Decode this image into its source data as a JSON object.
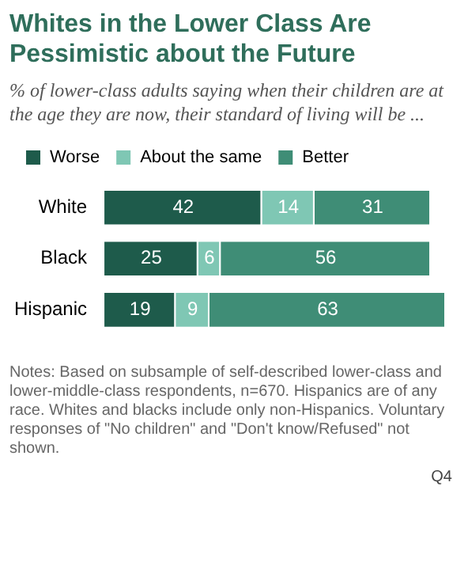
{
  "chart_data": {
    "type": "bar",
    "orientation": "horizontal",
    "stacked": true,
    "title": "Whites in the Lower Class Are Pessimistic about the Future",
    "subtitle": "% of lower-class adults saying when their children are at the age they are now, their standard of living will be ...",
    "categories": [
      "White",
      "Black",
      "Hispanic"
    ],
    "series": [
      {
        "name": "Worse",
        "color": "#1e5b4b",
        "values": [
          42,
          25,
          19
        ]
      },
      {
        "name": "About the same",
        "color": "#7fc7b4",
        "values": [
          14,
          6,
          9
        ]
      },
      {
        "name": "Better",
        "color": "#3f8d76",
        "values": [
          31,
          56,
          63
        ]
      }
    ],
    "xlim": [
      0,
      91
    ],
    "tick_labels": "y",
    "legend": "top left",
    "data_labels": true,
    "annotations": [
      "Notes: Based on subsample of self-described lower-class and lower-middle-class respondents, n=670. Hispanics are of any race. Whites and blacks include only non-Hispanics. Voluntary responses of \"No children\" and \"Don't know/Refused\" not shown.",
      "Q4"
    ]
  }
}
